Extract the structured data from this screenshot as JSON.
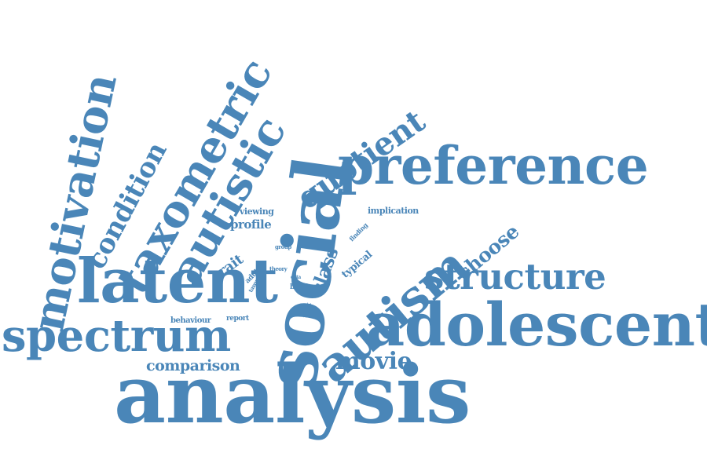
{
  "cloud": {
    "color": "#4a86b8",
    "words": [
      "analysis",
      "social",
      "adolescent",
      "preference",
      "latent",
      "spectrum",
      "autism",
      "motivation",
      "taxometric",
      "autistic",
      "quotient",
      "structure",
      "condition",
      "movie",
      "comparison",
      "choose",
      "class",
      "trait",
      "profile",
      "viewing",
      "implication",
      "behaviour",
      "report",
      "adult",
      "taxon",
      "group",
      "theory",
      "data",
      "brief",
      "task",
      "finding",
      "typical"
    ]
  }
}
